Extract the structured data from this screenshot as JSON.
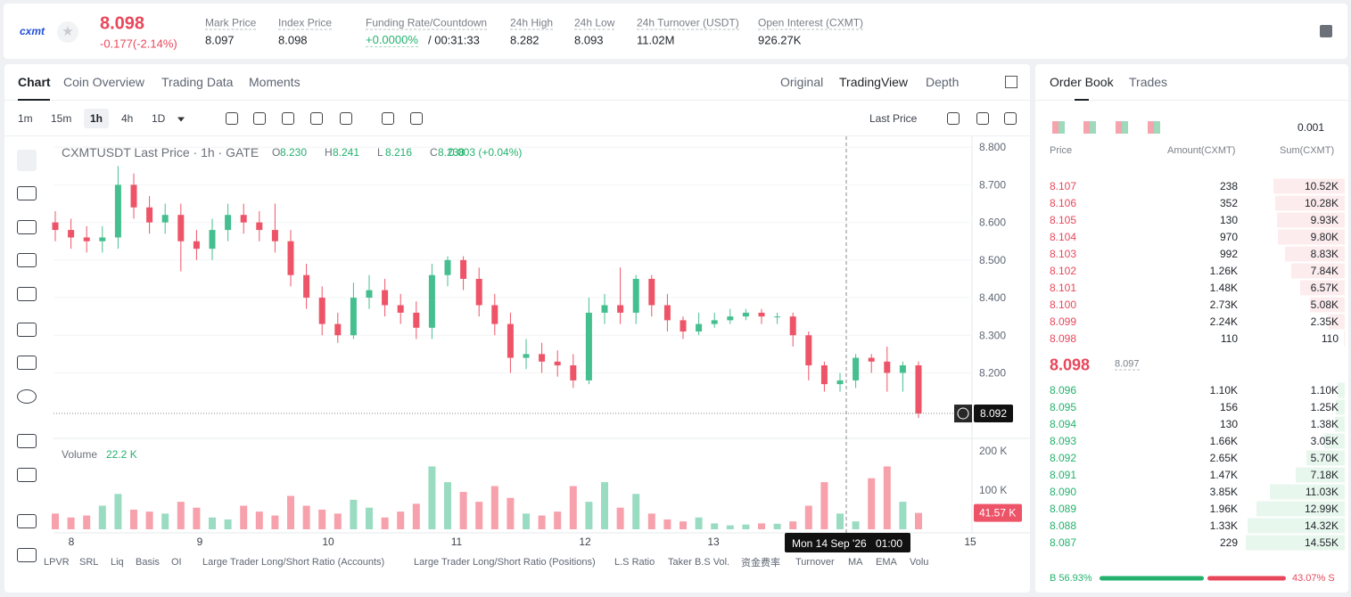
{
  "header": {
    "logo": "cxmt",
    "price": "8.098",
    "change": "-0.177(-2.14%)",
    "stats": [
      {
        "label": "Mark Price",
        "value": "8.097"
      },
      {
        "label": "Index Price",
        "value": "8.098"
      },
      {
        "label": "Funding Rate/Countdown",
        "value": "+0.0000%",
        "value2": "/ 00:31:33"
      },
      {
        "label": "24h High",
        "value": "8.282"
      },
      {
        "label": "24h Low",
        "value": "8.093"
      },
      {
        "label": "24h Turnover (USDT)",
        "value": "11.02M"
      },
      {
        "label": "Open Interest (CXMT)",
        "value": "926.27K"
      }
    ]
  },
  "tabs": [
    "Chart",
    "Coin Overview",
    "Trading Data",
    "Moments"
  ],
  "views": [
    "Original",
    "TradingView",
    "Depth"
  ],
  "intervals": [
    "1m",
    "15m",
    "1h",
    "4h",
    "1D"
  ],
  "price_type": "Last Price",
  "chart_header": {
    "title": "CXMTUSDT Last Price · 1h · GATE",
    "ohlc": [
      {
        "key": "O",
        "value": "8.230"
      },
      {
        "key": "H",
        "value": "8.241"
      },
      {
        "key": "L",
        "value": "8.216"
      },
      {
        "key": "C",
        "value": "8.238"
      }
    ],
    "change": "0.003 (+0.04%)",
    "volume_title": "Volume",
    "volume_value": "22.2 K"
  },
  "crosshair": {
    "date": "Mon 14 Sep '26",
    "time": "01:00"
  },
  "indicators": [
    "LPVR",
    "SRL",
    "Liq",
    "Basis",
    "OI",
    "Large Trader Long/Short Ratio (Accounts)",
    "Large Trader Long/Short Ratio (Positions)",
    "L.S Ratio",
    "Taker B.S Vol.",
    "资金费率",
    "Turnover",
    "MA",
    "EMA",
    "Volu"
  ],
  "chart_data": {
    "type": "candlestick",
    "up_color": "#45bf8f",
    "down_color": "#ee5468",
    "x_labels": [
      "8",
      "9",
      "10",
      "11",
      "12",
      "13",
      null,
      "15"
    ],
    "open": [
      8.6,
      8.58,
      8.56,
      8.55,
      8.56,
      8.7,
      8.64,
      8.6,
      8.62,
      8.55,
      8.53,
      8.58,
      8.62,
      8.6,
      8.58,
      8.55,
      8.46,
      8.4,
      8.33,
      8.3,
      8.4,
      8.42,
      8.38,
      8.36,
      8.32,
      8.46,
      8.5,
      8.45,
      8.38,
      8.33,
      8.24,
      8.25,
      8.23,
      8.22,
      8.18,
      8.36,
      8.38,
      8.36,
      8.45,
      8.38,
      8.34,
      8.31,
      8.33,
      8.34,
      8.35,
      8.36,
      8.35,
      8.35,
      8.3,
      8.22,
      8.17,
      8.18,
      8.24,
      8.23,
      8.2,
      8.22
    ],
    "high": [
      8.63,
      8.61,
      8.59,
      8.59,
      8.75,
      8.73,
      8.67,
      8.65,
      8.65,
      8.58,
      8.61,
      8.65,
      8.65,
      8.63,
      8.65,
      8.58,
      8.49,
      8.43,
      8.36,
      8.44,
      8.46,
      8.45,
      8.41,
      8.39,
      8.49,
      8.51,
      8.51,
      8.48,
      8.41,
      8.36,
      8.29,
      8.28,
      8.26,
      8.25,
      8.4,
      8.41,
      8.48,
      8.46,
      8.46,
      8.41,
      8.35,
      8.36,
      8.36,
      8.37,
      8.37,
      8.37,
      8.36,
      8.36,
      8.31,
      8.23,
      8.2,
      8.25,
      8.25,
      8.27,
      8.23,
      8.23
    ],
    "low": [
      8.55,
      8.53,
      8.52,
      8.52,
      8.53,
      8.61,
      8.57,
      8.57,
      8.47,
      8.5,
      8.5,
      8.55,
      8.57,
      8.55,
      8.52,
      8.43,
      8.37,
      8.3,
      8.28,
      8.29,
      8.37,
      8.35,
      8.33,
      8.29,
      8.29,
      8.43,
      8.42,
      8.35,
      8.3,
      8.2,
      8.21,
      8.2,
      8.19,
      8.16,
      8.17,
      8.33,
      8.33,
      8.33,
      8.35,
      8.31,
      8.29,
      8.3,
      8.32,
      8.33,
      8.34,
      8.33,
      8.33,
      8.27,
      8.18,
      8.15,
      8.15,
      8.16,
      8.2,
      8.15,
      8.15,
      8.08
    ],
    "close": [
      8.58,
      8.56,
      8.55,
      8.56,
      8.7,
      8.64,
      8.6,
      8.62,
      8.55,
      8.53,
      8.58,
      8.62,
      8.6,
      8.58,
      8.55,
      8.46,
      8.4,
      8.33,
      8.3,
      8.4,
      8.42,
      8.38,
      8.36,
      8.32,
      8.46,
      8.5,
      8.45,
      8.38,
      8.33,
      8.24,
      8.25,
      8.23,
      8.22,
      8.18,
      8.36,
      8.38,
      8.36,
      8.45,
      8.38,
      8.34,
      8.31,
      8.33,
      8.34,
      8.35,
      8.36,
      8.35,
      8.35,
      8.3,
      8.22,
      8.17,
      8.18,
      8.24,
      8.23,
      8.2,
      8.22,
      8.092
    ],
    "volume": [
      40000,
      30000,
      35000,
      60000,
      90000,
      50000,
      45000,
      40000,
      70000,
      55000,
      30000,
      25000,
      60000,
      45000,
      35000,
      85000,
      60000,
      50000,
      40000,
      75000,
      55000,
      30000,
      45000,
      65000,
      160000,
      120000,
      95000,
      70000,
      110000,
      80000,
      40000,
      35000,
      45000,
      110000,
      70000,
      120000,
      55000,
      90000,
      40000,
      25000,
      20000,
      30000,
      15000,
      10000,
      12000,
      15000,
      14000,
      20000,
      60000,
      120000,
      40000,
      20000,
      130000,
      160000,
      70000,
      41570
    ],
    "ylim": [
      8.04,
      8.81
    ],
    "yticks": [
      {
        "value": 8.8,
        "label": "8.800"
      },
      {
        "value": 8.7,
        "label": "8.700"
      },
      {
        "value": 8.6,
        "label": "8.600"
      },
      {
        "value": 8.5,
        "label": "8.500"
      },
      {
        "value": 8.4,
        "label": "8.400"
      },
      {
        "value": 8.3,
        "label": "8.300"
      },
      {
        "value": 8.2,
        "label": "8.200"
      }
    ],
    "y2lim": [
      0,
      220000
    ],
    "y2ticks": [
      {
        "value": 200000,
        "label": "200 K"
      },
      {
        "value": 100000,
        "label": "100 K"
      }
    ],
    "last_price": 8.092,
    "volume_last": {
      "value": 41570,
      "label": "41.57 K"
    }
  },
  "order_book": {
    "tabs": [
      "Order Book",
      "Trades"
    ],
    "precision": "0.001",
    "columns": [
      "Price",
      "Amount(CXMT)",
      "Sum(CXMT)"
    ],
    "asks": [
      [
        "8.107",
        "238",
        "10.52K"
      ],
      [
        "8.106",
        "352",
        "10.28K"
      ],
      [
        "8.105",
        "130",
        "9.93K"
      ],
      [
        "8.104",
        "970",
        "9.80K"
      ],
      [
        "8.103",
        "992",
        "8.83K"
      ],
      [
        "8.102",
        "1.26K",
        "7.84K"
      ],
      [
        "8.101",
        "1.48K",
        "6.57K"
      ],
      [
        "8.100",
        "2.73K",
        "5.08K"
      ],
      [
        "8.099",
        "2.24K",
        "2.35K"
      ],
      [
        "8.098",
        "110",
        "110"
      ]
    ],
    "mid": {
      "price": "8.098",
      "mark": "8.097"
    },
    "bids": [
      [
        "8.096",
        "1.10K",
        "1.10K"
      ],
      [
        "8.095",
        "156",
        "1.25K"
      ],
      [
        "8.094",
        "130",
        "1.38K"
      ],
      [
        "8.093",
        "1.66K",
        "3.05K"
      ],
      [
        "8.092",
        "2.65K",
        "5.70K"
      ],
      [
        "8.091",
        "1.47K",
        "7.18K"
      ],
      [
        "8.090",
        "3.85K",
        "11.03K"
      ],
      [
        "8.089",
        "1.96K",
        "12.99K"
      ],
      [
        "8.088",
        "1.33K",
        "14.32K"
      ],
      [
        "8.087",
        "229",
        "14.55K"
      ]
    ],
    "ratio": {
      "buy": 56.93,
      "buy_label": "B 56.93%",
      "sell": 43.07,
      "sell_label": "43.07% S"
    }
  }
}
